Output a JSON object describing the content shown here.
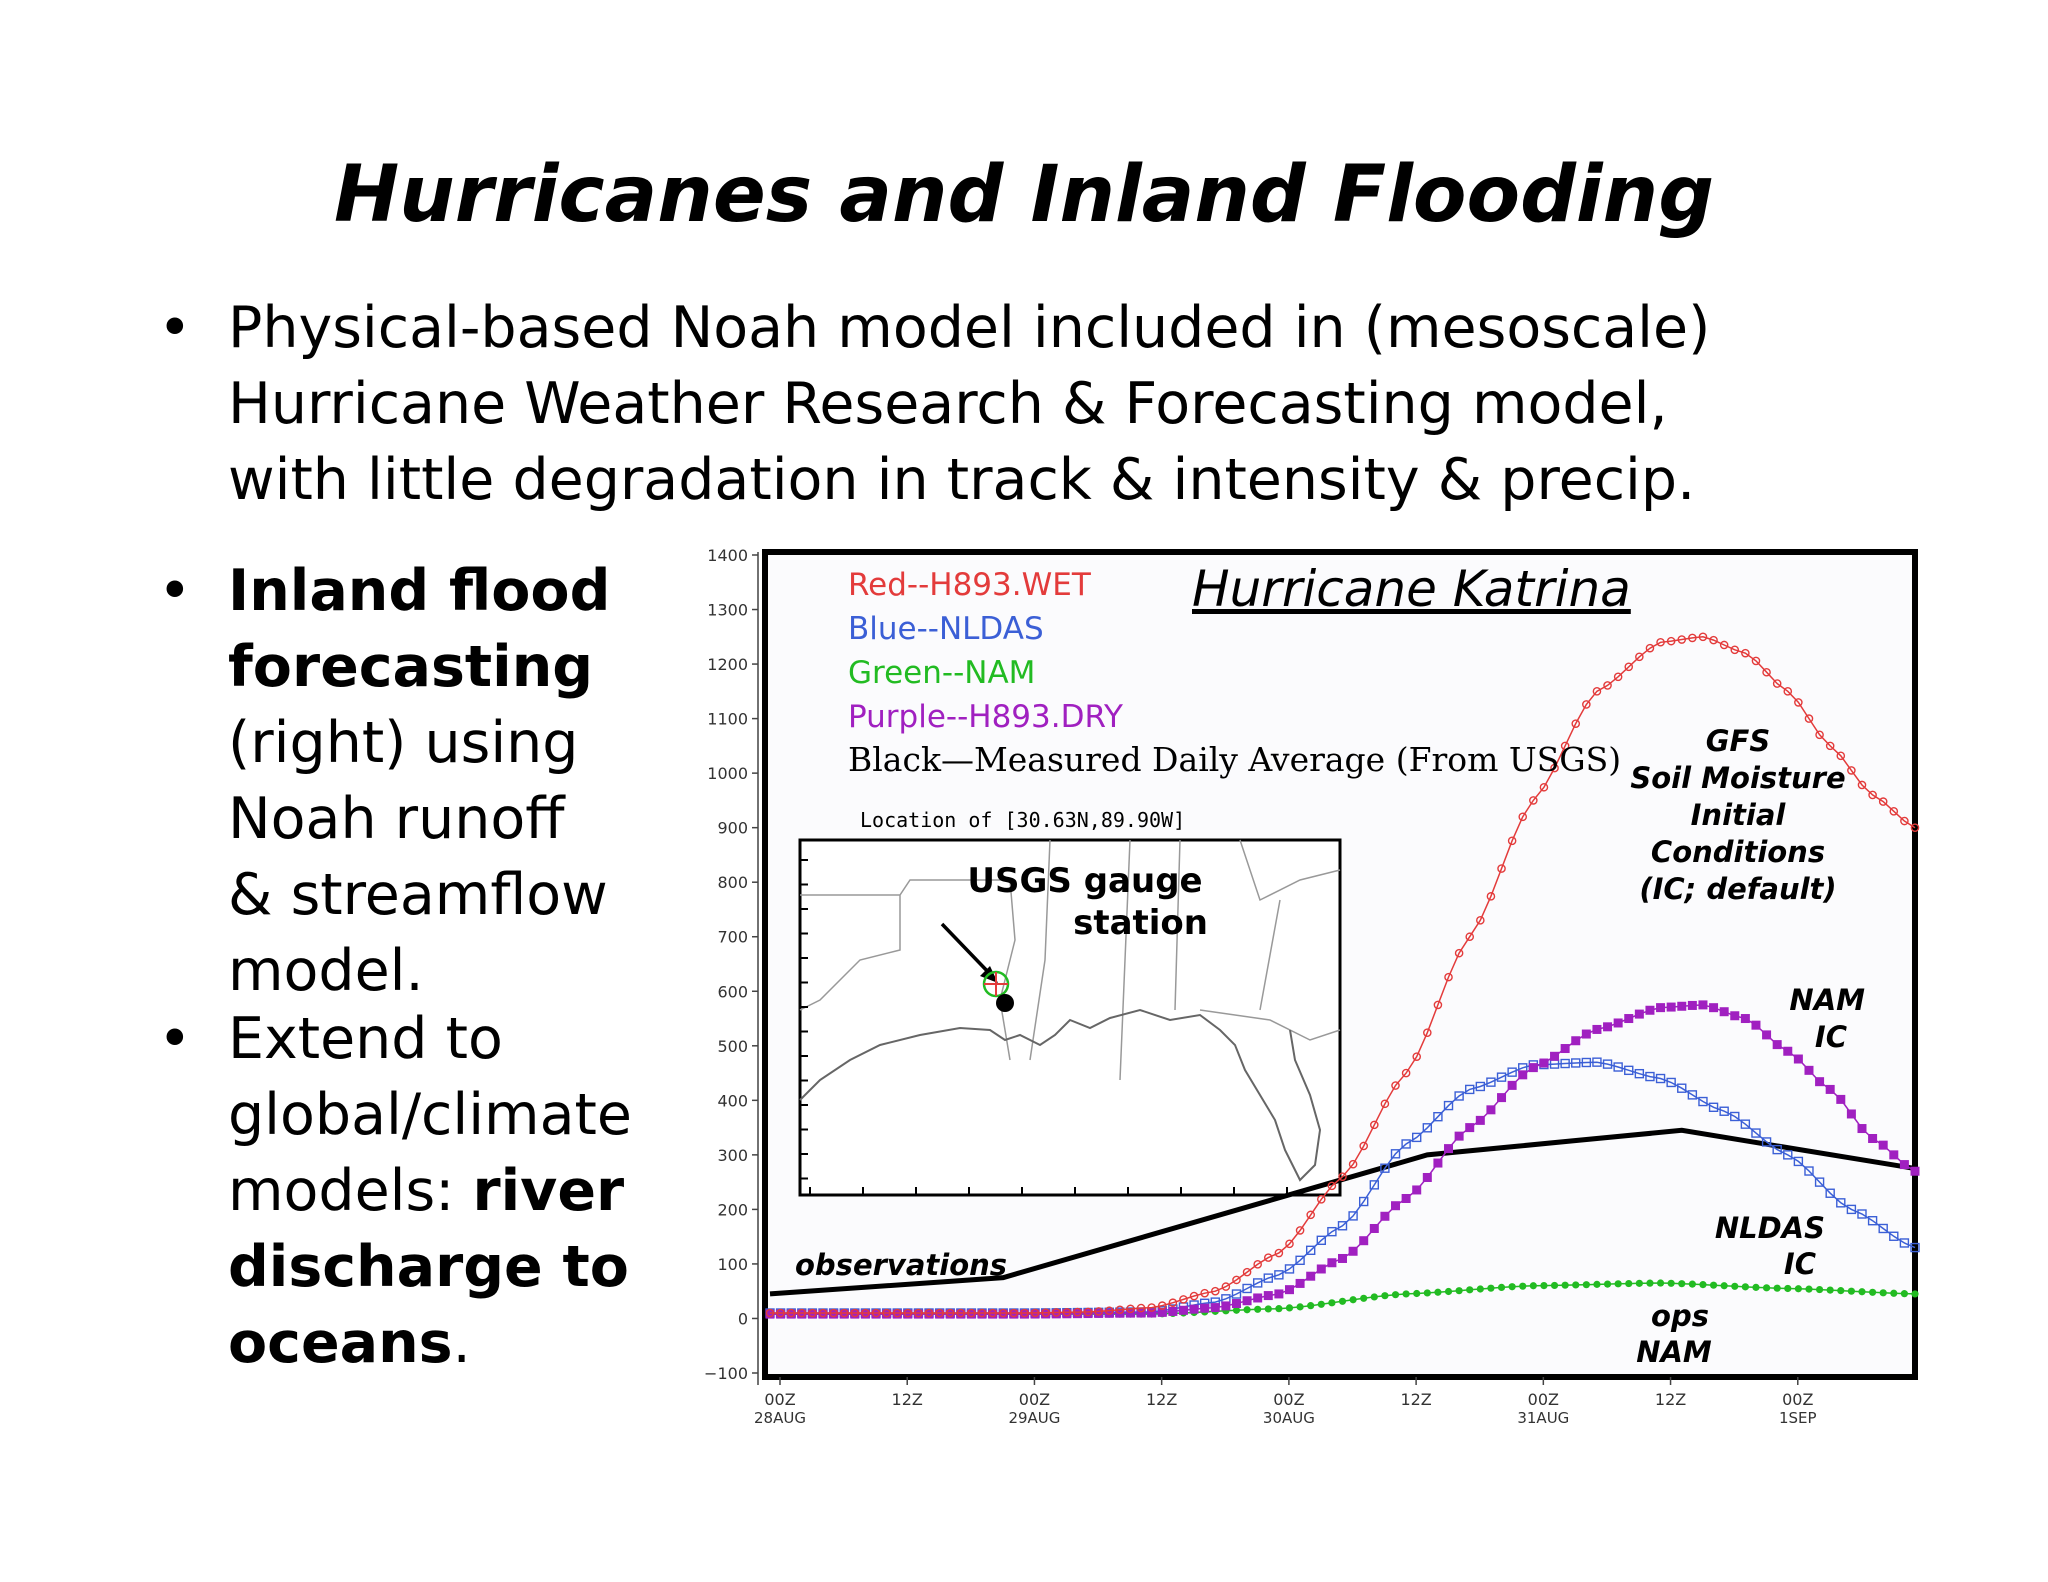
{
  "title": "Hurricanes and Inland Flooding",
  "bullets": {
    "b1_lines": [
      "Physical-based Noah model included in (mesoscale)",
      "Hurricane Weather Research & Forecasting model,",
      "with little degradation in track & intensity & precip."
    ],
    "b2_bold_1": "Inland flood",
    "b2_bold_2": "forecasting",
    "b2_line_3": "(right) using",
    "b2_line_4": "Noah runoff",
    "b2_line_5": "& streamflow",
    "b2_line_6": "model.",
    "b3_line_1": "Extend to",
    "b3_line_2": "global/climate",
    "b3_line_3_plain": "models: ",
    "b3_line_3_bold": "river",
    "b3_line_4_bold": "discharge to",
    "b3_line_5_bold": "oceans",
    "b3_line_5_end": ".",
    "bullet_char": "•"
  },
  "chart": {
    "title": "Hurricane Katrina",
    "legend": [
      {
        "text": "Red--H893.WET",
        "color": "#e33b3b"
      },
      {
        "text": "Blue--NLDAS",
        "color": "#3b5fd6"
      },
      {
        "text": "Green--NAM",
        "color": "#22bb22"
      },
      {
        "text": "Purple--H893.DRY",
        "color": "#a020c0"
      },
      {
        "text": "Black—Measured Daily Average (From USGS)",
        "color": "#000000"
      }
    ],
    "annotations": {
      "gfs_1": "GFS",
      "gfs_2": "Soil Moisture",
      "gfs_3": "Initial",
      "gfs_4": "Conditions",
      "gfs_5": "(IC; default)",
      "nam_1": "NAM",
      "nam_2": "IC",
      "nldas_1": "NLDAS",
      "nldas_2": "IC",
      "ops_1": "ops",
      "ops_2": "NAM",
      "observations": "observations"
    },
    "inset": {
      "location_label": "Location of [30.63N,89.90W]",
      "gauge_1": "USGS gauge",
      "gauge_2": "station"
    },
    "y_ticks": [
      "1400",
      "1300",
      "1200",
      "1100",
      "1000",
      "900",
      "800",
      "700",
      "600",
      "500",
      "400",
      "300",
      "200",
      "100",
      "0",
      "−100"
    ],
    "x_ticks": [
      {
        "top": "00Z",
        "bottom": "28AUG"
      },
      {
        "top": "12Z",
        "bottom": ""
      },
      {
        "top": "00Z",
        "bottom": "29AUG"
      },
      {
        "top": "12Z",
        "bottom": ""
      },
      {
        "top": "00Z",
        "bottom": "30AUG"
      },
      {
        "top": "12Z",
        "bottom": ""
      },
      {
        "top": "00Z",
        "bottom": "31AUG"
      },
      {
        "top": "12Z",
        "bottom": ""
      },
      {
        "top": "00Z",
        "bottom": "1SEP"
      }
    ]
  },
  "chart_data": {
    "type": "line",
    "title": "Hurricane Katrina",
    "x_unit": "hours since 00Z 28AUG",
    "ylim": [
      -100,
      1400
    ],
    "xlim": [
      0,
      108
    ],
    "series": [
      {
        "name": "Red--H893.WET",
        "color": "#e33b3b",
        "marker": "open-circle",
        "points": [
          [
            0,
            10
          ],
          [
            12,
            10
          ],
          [
            24,
            10
          ],
          [
            30,
            12
          ],
          [
            36,
            20
          ],
          [
            42,
            50
          ],
          [
            48,
            120
          ],
          [
            54,
            260
          ],
          [
            60,
            450
          ],
          [
            66,
            700
          ],
          [
            72,
            950
          ],
          [
            78,
            1150
          ],
          [
            84,
            1240
          ],
          [
            88,
            1250
          ],
          [
            92,
            1220
          ],
          [
            96,
            1150
          ],
          [
            100,
            1050
          ],
          [
            104,
            960
          ],
          [
            108,
            900
          ]
        ]
      },
      {
        "name": "Blue--NLDAS",
        "color": "#3b5fd6",
        "marker": "open-square",
        "points": [
          [
            0,
            10
          ],
          [
            12,
            10
          ],
          [
            24,
            10
          ],
          [
            36,
            12
          ],
          [
            42,
            30
          ],
          [
            48,
            80
          ],
          [
            54,
            170
          ],
          [
            60,
            320
          ],
          [
            66,
            420
          ],
          [
            72,
            465
          ],
          [
            78,
            470
          ],
          [
            84,
            440
          ],
          [
            90,
            380
          ],
          [
            96,
            300
          ],
          [
            102,
            200
          ],
          [
            108,
            130
          ]
        ]
      },
      {
        "name": "Green--NAM",
        "color": "#22bb22",
        "marker": "filled-circle",
        "points": [
          [
            0,
            8
          ],
          [
            12,
            8
          ],
          [
            24,
            8
          ],
          [
            36,
            8
          ],
          [
            48,
            18
          ],
          [
            60,
            45
          ],
          [
            72,
            60
          ],
          [
            84,
            65
          ],
          [
            96,
            55
          ],
          [
            108,
            45
          ]
        ]
      },
      {
        "name": "Purple--H893.DRY",
        "color": "#a020c0",
        "marker": "filled-square",
        "points": [
          [
            0,
            8
          ],
          [
            12,
            8
          ],
          [
            24,
            8
          ],
          [
            36,
            10
          ],
          [
            42,
            20
          ],
          [
            48,
            45
          ],
          [
            54,
            110
          ],
          [
            60,
            220
          ],
          [
            66,
            350
          ],
          [
            72,
            460
          ],
          [
            78,
            530
          ],
          [
            84,
            570
          ],
          [
            88,
            575
          ],
          [
            92,
            550
          ],
          [
            96,
            490
          ],
          [
            100,
            420
          ],
          [
            104,
            330
          ],
          [
            108,
            270
          ]
        ]
      },
      {
        "name": "Black—Measured Daily Average (From USGS)",
        "color": "#000000",
        "marker": "none",
        "points": [
          [
            0,
            45
          ],
          [
            22,
            75
          ],
          [
            62,
            300
          ],
          [
            86,
            345
          ],
          [
            108,
            275
          ]
        ]
      }
    ]
  }
}
